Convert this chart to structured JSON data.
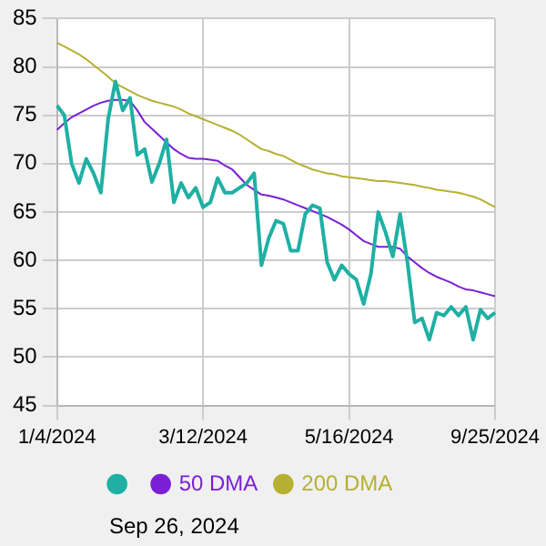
{
  "chart_data": {
    "type": "line",
    "categories": [
      "1/4/2024",
      null,
      null,
      null,
      null,
      null,
      null,
      null,
      null,
      null,
      null,
      null,
      null,
      null,
      null,
      null,
      null,
      null,
      null,
      null,
      "3/12/2024",
      null,
      null,
      null,
      null,
      null,
      null,
      null,
      null,
      null,
      null,
      null,
      null,
      null,
      null,
      null,
      null,
      null,
      null,
      null,
      "5/16/2024",
      null,
      null,
      null,
      null,
      null,
      null,
      null,
      null,
      null,
      null,
      null,
      null,
      null,
      null,
      null,
      null,
      null,
      null,
      null,
      "9/25/2024"
    ],
    "series": [
      {
        "color": "#1fb0a4",
        "values": [
          76,
          75,
          70,
          68,
          70.5,
          69,
          67,
          74.6,
          78.5,
          75.5,
          76.8,
          70.9,
          71.5,
          68.1,
          70,
          72.5,
          66,
          68,
          66.5,
          67.5,
          65.5,
          66,
          68.5,
          67,
          67,
          67.5,
          68,
          69,
          59.5,
          62.3,
          64.1,
          63.8,
          61,
          61,
          64.8,
          65.7,
          65.4,
          59.8,
          58,
          59.5,
          58.6,
          58,
          55.5,
          58.6,
          65,
          62.9,
          60.4,
          64.8,
          59.8,
          53.6,
          54,
          51.8,
          54.6,
          54.3,
          55.2,
          54.3,
          55.2,
          51.8,
          54.9,
          54,
          54.6
        ]
      },
      {
        "name": "50 DMA",
        "color": "#7a1fd6",
        "values": [
          73.5,
          74.2,
          74.8,
          75.2,
          75.6,
          76,
          76.3,
          76.5,
          76.6,
          76.6,
          76.5,
          75.5,
          74.3,
          73.6,
          72.9,
          72.2,
          71.5,
          71,
          70.6,
          70.5,
          70.5,
          70.4,
          70.3,
          69.8,
          69.4,
          68.6,
          67.8,
          67.3,
          66.8,
          66.7,
          66.5,
          66.3,
          66,
          65.7,
          65.4,
          65.1,
          64.8,
          64.5,
          64.1,
          63.7,
          63.2,
          62.6,
          62,
          61.7,
          61.4,
          61.4,
          61.4,
          61.2,
          60.4,
          59.8,
          59.2,
          58.7,
          58.3,
          58,
          57.7,
          57.3,
          57,
          56.9,
          56.7,
          56.5,
          56.3
        ]
      },
      {
        "name": "200 DMA",
        "color": "#b5b031",
        "values": [
          82.5,
          82.1,
          81.7,
          81.3,
          80.8,
          80.2,
          79.6,
          79,
          78.3,
          77.9,
          77.5,
          77.1,
          76.8,
          76.5,
          76.3,
          76.1,
          75.9,
          75.6,
          75.2,
          74.9,
          74.6,
          74.3,
          74,
          73.7,
          73.4,
          73,
          72.5,
          72,
          71.5,
          71.3,
          71,
          70.8,
          70.4,
          70,
          69.7,
          69.4,
          69.2,
          69,
          68.9,
          68.7,
          68.6,
          68.5,
          68.4,
          68.3,
          68.2,
          68.2,
          68.1,
          68,
          67.9,
          67.8,
          67.6,
          67.5,
          67.3,
          67.2,
          67.1,
          67,
          66.8,
          66.6,
          66.3,
          65.9,
          65.5
        ]
      }
    ],
    "ylim": [
      45,
      85
    ],
    "yticks": [
      45,
      50,
      55,
      60,
      65,
      70,
      75,
      80,
      85
    ],
    "grid": true,
    "legend": "bottom",
    "marker": "none",
    "annotations": [
      "Sep 26, 2024"
    ]
  }
}
